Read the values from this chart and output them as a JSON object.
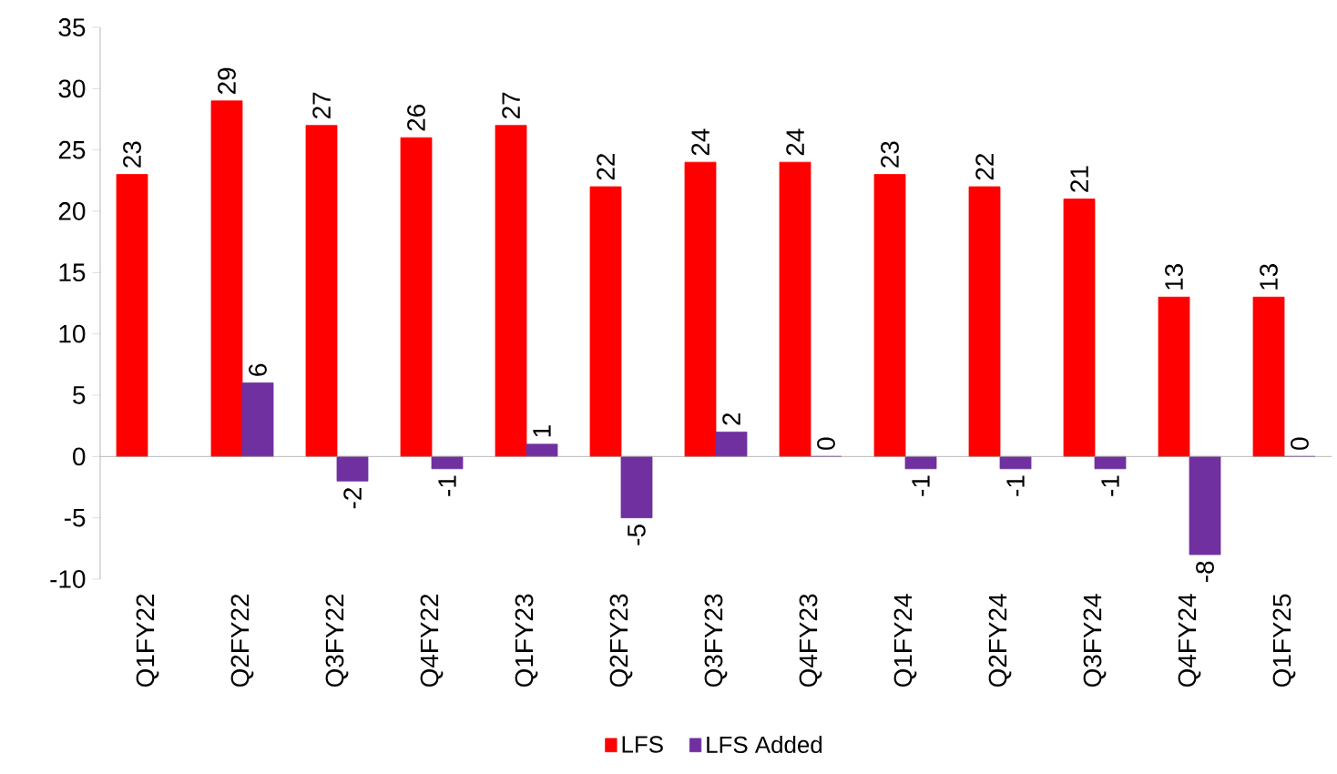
{
  "chart_data": {
    "type": "bar",
    "categories": [
      "Q1FY22",
      "Q2FY22",
      "Q3FY22",
      "Q4FY22",
      "Q1FY23",
      "Q2FY23",
      "Q3FY23",
      "Q4FY23",
      "Q1FY24",
      "Q2FY24",
      "Q3FY24",
      "Q4FY24",
      "Q1FY25"
    ],
    "series": [
      {
        "name": "LFS",
        "color": "#ff0000",
        "values": [
          23,
          29,
          27,
          26,
          27,
          22,
          24,
          24,
          23,
          22,
          21,
          13,
          13
        ]
      },
      {
        "name": "LFS Added",
        "color": "#7030a0",
        "values": [
          null,
          6,
          -2,
          -1,
          1,
          -5,
          2,
          0,
          -1,
          -1,
          -1,
          -8,
          0
        ]
      }
    ],
    "ylim": [
      -10,
      35
    ],
    "yticks": [
      -10,
      -5,
      0,
      5,
      10,
      15,
      20,
      25,
      30,
      35
    ],
    "data_labels": true,
    "legend": "bottom"
  }
}
